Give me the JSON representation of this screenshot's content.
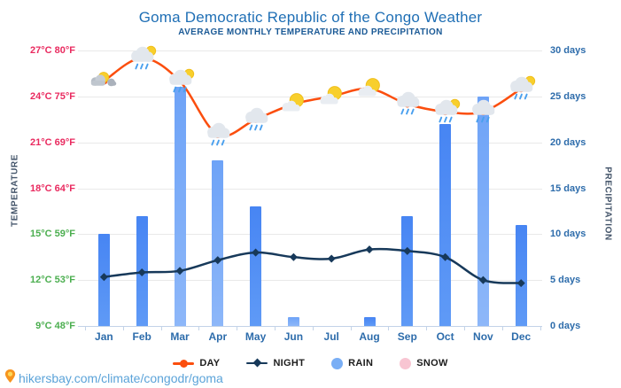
{
  "header": {
    "title": "Goma Democratic Republic of the Congo Weather",
    "subtitle": "AVERAGE MONTHLY TEMPERATURE AND PRECIPITATION"
  },
  "axes": {
    "left_title": "TEMPERATURE",
    "right_title": "PRECIPITATION",
    "left_ticks": [
      {
        "label": "27°C 80°F",
        "color": "#e92a5f"
      },
      {
        "label": "24°C 75°F",
        "color": "#e92a5f"
      },
      {
        "label": "21°C 69°F",
        "color": "#e92a5f"
      },
      {
        "label": "18°C 64°F",
        "color": "#e92a5f"
      },
      {
        "label": "15°C 59°F",
        "color": "#4bae4f"
      },
      {
        "label": "12°C 53°F",
        "color": "#4bae4f"
      },
      {
        "label": "9°C 48°F",
        "color": "#4bae4f"
      }
    ],
    "right_ticks": [
      "30 days",
      "25 days",
      "20 days",
      "15 days",
      "10 days",
      "5 days",
      "0 days"
    ],
    "months": [
      "Jan",
      "Feb",
      "Mar",
      "Apr",
      "May",
      "Jun",
      "Jul",
      "Aug",
      "Sep",
      "Oct",
      "Nov",
      "Dec"
    ]
  },
  "legend": {
    "day": "DAY",
    "night": "NIGHT",
    "rain": "RAIN",
    "snow": "SNOW"
  },
  "footer": {
    "url": "hikersbay.com/climate/congodr/goma"
  },
  "colors": {
    "day_line": "#fb4e0e",
    "night_line": "#17395a",
    "rain_bar_dark": "#4d8bf5",
    "rain_bar_light": "#7fadf8",
    "snow": "#f8c5d2",
    "title": "#1f6fb5",
    "warm_ticks": "#e92a5f",
    "cool_ticks": "#4bae4f",
    "axis_blue": "#2d6cab",
    "footer_link": "#5ba3d9"
  },
  "chart_data": {
    "type": "line+bar",
    "title": "Goma Democratic Republic of the Congo Weather",
    "subtitle": "AVERAGE MONTHLY TEMPERATURE AND PRECIPITATION",
    "categories": [
      "Jan",
      "Feb",
      "Mar",
      "Apr",
      "May",
      "Jun",
      "Jul",
      "Aug",
      "Sep",
      "Oct",
      "Nov",
      "Dec"
    ],
    "series": [
      {
        "name": "DAY",
        "type": "line",
        "unit": "°C",
        "values": [
          25,
          26.5,
          25,
          21.5,
          22.5,
          23.5,
          24,
          24.5,
          23.5,
          23,
          23,
          24.5
        ]
      },
      {
        "name": "NIGHT",
        "type": "line",
        "unit": "°C",
        "values": [
          12.2,
          12.5,
          12.6,
          13.3,
          13.8,
          13.5,
          13.4,
          14,
          13.9,
          13.5,
          12,
          11.8
        ]
      },
      {
        "name": "RAIN",
        "type": "bar",
        "unit": "days",
        "values": [
          10,
          12,
          26,
          18,
          13,
          1,
          0,
          1,
          12,
          22,
          25,
          11
        ]
      },
      {
        "name": "SNOW",
        "type": "bar",
        "unit": "days",
        "values": [
          0,
          0,
          0,
          0,
          0,
          0,
          0,
          0,
          0,
          0,
          0,
          0
        ]
      }
    ],
    "weather_icons": [
      "cloudy-sun",
      "rain-sun",
      "rain-sun",
      "rain",
      "rain",
      "sun-cloud",
      "sun-cloud",
      "sun-cloud",
      "rain",
      "rain-sun",
      "rain",
      "rain-sun"
    ],
    "bar_shades": [
      "dark",
      "dark",
      "light",
      "light",
      "dark",
      "light",
      "dark",
      "dark",
      "dark",
      "dark",
      "light",
      "dark"
    ],
    "temp_axis": {
      "min": 9,
      "max": 27,
      "step": 3,
      "labels_c": [
        27,
        24,
        21,
        18,
        15,
        12,
        9
      ]
    },
    "precip_axis": {
      "min": 0,
      "max": 30,
      "step": 5
    },
    "grid": true,
    "legend_position": "bottom"
  }
}
